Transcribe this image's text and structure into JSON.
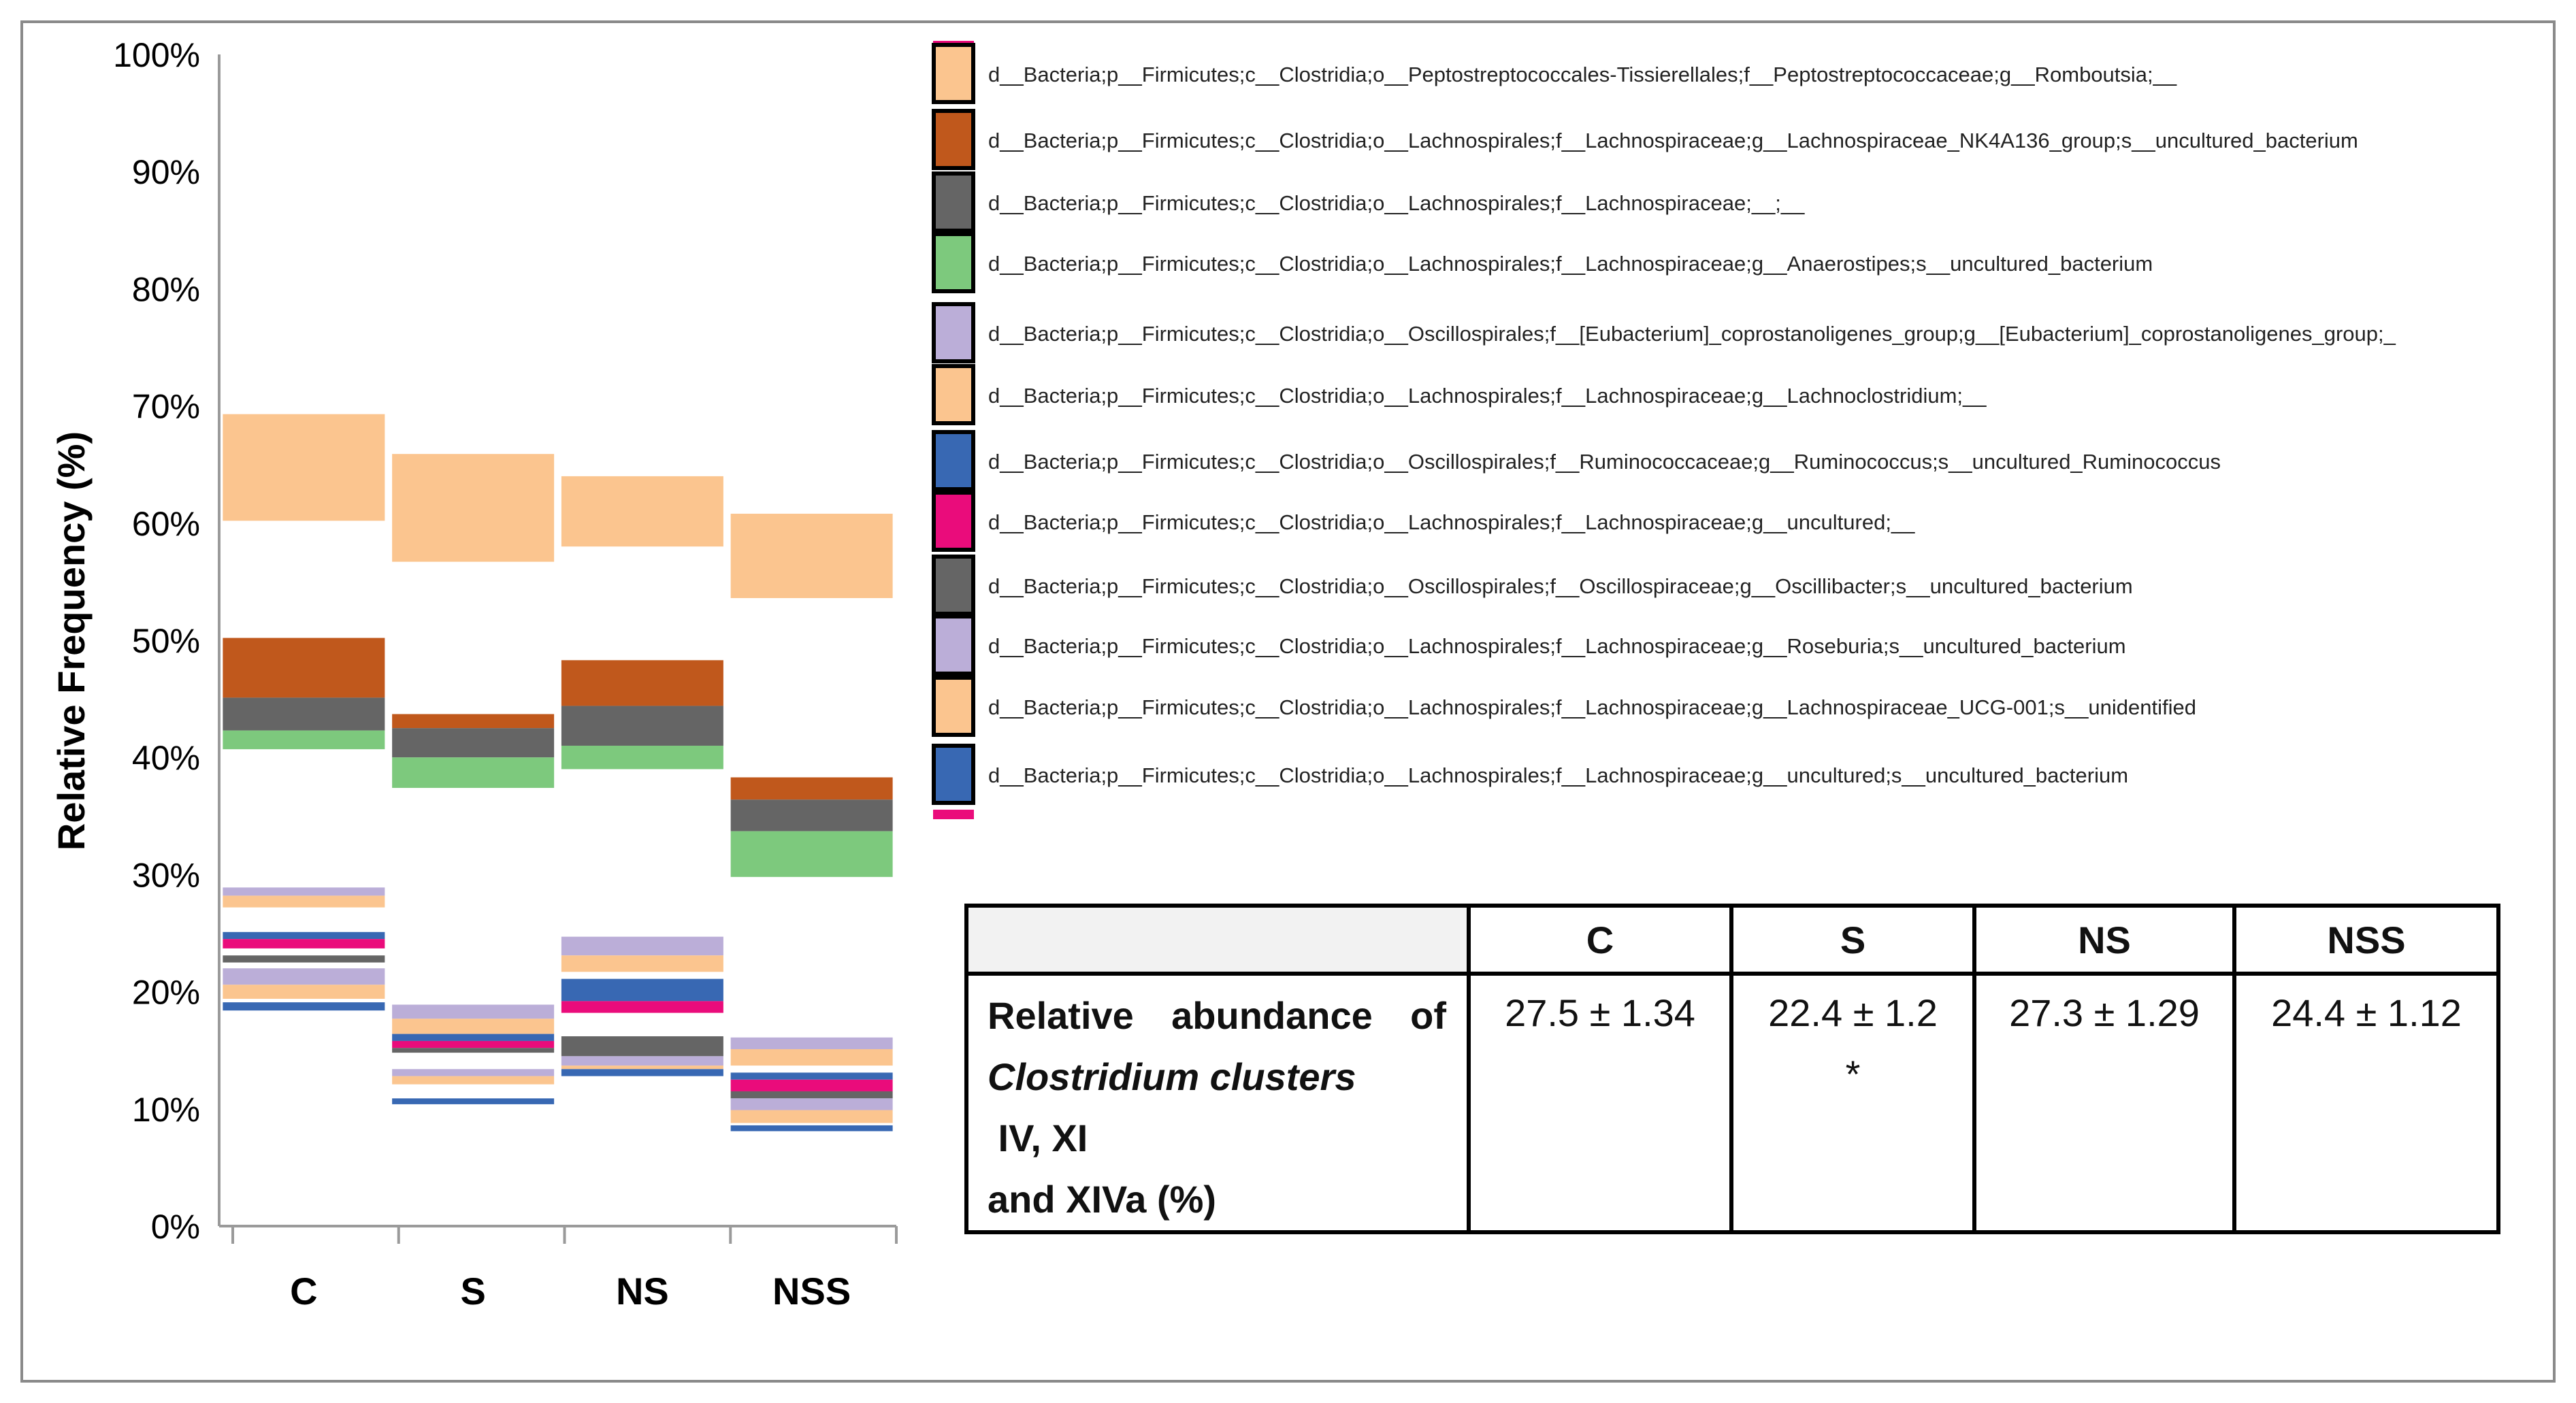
{
  "colors": {
    "peach": "#FBC58F",
    "brown": "#C0581C",
    "gray": "#656565",
    "green": "#7DC97D",
    "lavender": "#BBAED8",
    "blue": "#3868B3",
    "pink": "#EA0C7B",
    "axis": "#9a9a9a"
  },
  "chart_data": {
    "type": "bar",
    "title": "",
    "xlabel": "",
    "ylabel": "Relative Frequency (%)",
    "ylim": [
      0,
      100
    ],
    "yticks": [
      "0%",
      "10%",
      "20%",
      "30%",
      "40%",
      "50%",
      "60%",
      "70%",
      "80%",
      "90%",
      "100%"
    ],
    "categories": [
      "C",
      "S",
      "NS",
      "NSS"
    ],
    "stacking": "floating segments (lower, upper) in %",
    "series": [
      {
        "name": "d__Bacteria;p__Firmicutes;c__Clostridia;o__Peptostreptococcales-Tissierellales;f__Peptostreptococcaceae;g__Romboutsia;__",
        "color": "peach",
        "segments": [
          [
            60.2,
            69.3
          ],
          [
            56.7,
            65.9
          ],
          [
            58.0,
            64.0
          ],
          [
            53.6,
            60.8
          ]
        ]
      },
      {
        "name": "d__Bacteria;p__Firmicutes;c__Clostridia;o__Lachnospirales;f__Lachnospiraceae;g__Lachnospiraceae_NK4A136_group;s__uncultured_bacterium",
        "color": "brown",
        "segments": [
          [
            45.1,
            50.2
          ],
          [
            42.5,
            43.7
          ],
          [
            44.4,
            48.3
          ],
          [
            36.4,
            38.3
          ]
        ]
      },
      {
        "name": "d__Bacteria;p__Firmicutes;c__Clostridia;o__Lachnospirales;f__Lachnospiraceae;__;__",
        "color": "gray",
        "segments": [
          [
            42.3,
            45.1
          ],
          [
            40.0,
            42.5
          ],
          [
            41.0,
            44.4
          ],
          [
            33.7,
            36.4
          ]
        ]
      },
      {
        "name": "d__Bacteria;p__Firmicutes;c__Clostridia;o__Lachnospirales;f__Lachnospiraceae;g__Anaerostipes;s__uncultured_bacterium",
        "color": "green",
        "segments": [
          [
            40.7,
            42.3
          ],
          [
            37.4,
            40.0
          ],
          [
            39.0,
            41.0
          ],
          [
            29.8,
            33.7
          ]
        ]
      },
      {
        "name": "d__Bacteria;p__Firmicutes;c__Clostridia;o__Oscillospirales;f__[Eubacterium]_coprostanoligenes_group;g__[Eubacterium]_coprostanoligenes_group;_",
        "color": "lavender",
        "segments": [
          [
            28.2,
            28.9
          ],
          [
            17.7,
            18.9
          ],
          [
            23.1,
            24.7
          ],
          [
            15.1,
            16.1
          ]
        ]
      },
      {
        "name": "d__Bacteria;p__Firmicutes;c__Clostridia;o__Lachnospirales;f__Lachnospiraceae;g__Lachnoclostridium;__",
        "color": "peach",
        "segments": [
          [
            27.2,
            28.2
          ],
          [
            16.4,
            17.7
          ],
          [
            21.7,
            23.1
          ],
          [
            13.7,
            15.1
          ]
        ]
      },
      {
        "name": "d__Bacteria;p__Firmicutes;c__Clostridia;o__Oscillospirales;f__Ruminococcaceae;g__Ruminococcus;s__uncultured_Ruminococcus",
        "color": "blue",
        "segments": [
          [
            24.5,
            25.1
          ],
          [
            15.8,
            16.4
          ],
          [
            19.2,
            21.1
          ],
          [
            12.5,
            13.1
          ]
        ]
      },
      {
        "name": "d__Bacteria;p__Firmicutes;c__Clostridia;o__Lachnospirales;f__Lachnospiraceae;g__uncultured;__",
        "color": "pink",
        "segments": [
          [
            23.7,
            24.5
          ],
          [
            15.2,
            15.8
          ],
          [
            18.2,
            19.2
          ],
          [
            11.5,
            12.5
          ]
        ]
      },
      {
        "name": "d__Bacteria;p__Firmicutes;c__Clostridia;o__Oscillospirales;f__Oscillospiraceae;g__Oscillibacter;s__uncultured_bacterium",
        "color": "gray",
        "segments": [
          [
            22.5,
            23.1
          ],
          [
            14.8,
            15.2
          ],
          [
            14.5,
            16.2
          ],
          [
            10.9,
            11.5
          ]
        ]
      },
      {
        "name": "d__Bacteria;p__Firmicutes;c__Clostridia;o__Lachnospirales;f__Lachnospiraceae;g__Roseburia;s__uncultured_bacterium",
        "color": "lavender",
        "segments": [
          [
            20.6,
            22.0
          ],
          [
            12.8,
            13.4
          ],
          [
            13.7,
            14.5
          ],
          [
            9.9,
            10.9
          ]
        ]
      },
      {
        "name": "d__Bacteria;p__Firmicutes;c__Clostridia;o__Lachnospirales;f__Lachnospiraceae;g__Lachnospiraceae_UCG-001;s__unidentified",
        "color": "peach",
        "segments": [
          [
            19.4,
            20.6
          ],
          [
            12.1,
            12.8
          ],
          [
            13.4,
            13.7
          ],
          [
            8.8,
            9.9
          ]
        ]
      },
      {
        "name": "d__Bacteria;p__Firmicutes;c__Clostridia;o__Lachnospirales;f__Lachnospiraceae;g__uncultured;s__uncultured_bacterium",
        "color": "blue",
        "segments": [
          [
            18.4,
            19.1
          ],
          [
            10.4,
            10.9
          ],
          [
            12.8,
            13.4
          ],
          [
            8.1,
            8.6
          ]
        ]
      }
    ]
  },
  "table": {
    "columns": [
      "C",
      "S",
      "NS",
      "NSS"
    ],
    "row_label_line1": [
      "Relative",
      "abundance",
      "of"
    ],
    "row_label_italic": "Clostridium clusters",
    "row_label_rest": " IV, XI",
    "row_label_line3": "and XIVa (%)",
    "values": [
      "27.5 ± 1.34",
      "22.4 ± 1.2",
      "27.3 ± 1.29",
      "24.4 ± 1.12"
    ],
    "sig_marker": "*"
  }
}
